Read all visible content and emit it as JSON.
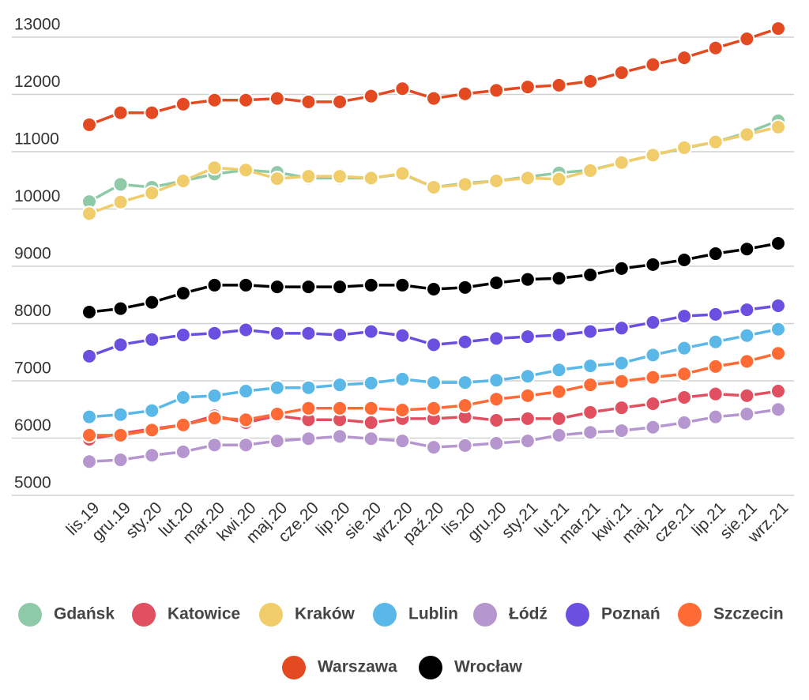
{
  "chart_data": {
    "type": "line",
    "categories": [
      "lis.19",
      "gru.19",
      "sty.20",
      "lut.20",
      "mar.20",
      "kwi.20",
      "maj.20",
      "cze.20",
      "lip.20",
      "sie.20",
      "wrz.20",
      "paź.20",
      "lis.20",
      "gru.20",
      "sty.21",
      "lut.21",
      "mar.21",
      "kwi.21",
      "maj.21",
      "cze.21",
      "lip.21",
      "sie.21",
      "wrz.21"
    ],
    "ylim": [
      5000,
      13200
    ],
    "yticks": [
      5000,
      6000,
      7000,
      8000,
      9000,
      10000,
      11000,
      12000,
      13000
    ],
    "grid": true,
    "legend": "bottom",
    "series": [
      {
        "name": "Gdańsk",
        "color": "#8ecaa8",
        "values": [
          10130,
          10430,
          10380,
          10490,
          10610,
          10680,
          10640,
          10540,
          10540,
          10540,
          10610,
          10380,
          10450,
          10490,
          10560,
          10630,
          10680,
          10810,
          10940,
          11060,
          11170,
          11330,
          11540
        ]
      },
      {
        "name": "Katowice",
        "color": "#e05060",
        "values": [
          5980,
          6080,
          6160,
          6230,
          6390,
          6270,
          6390,
          6320,
          6320,
          6270,
          6340,
          6340,
          6370,
          6310,
          6340,
          6340,
          6450,
          6530,
          6600,
          6710,
          6770,
          6740,
          6820
        ]
      },
      {
        "name": "Kraków",
        "color": "#f0cc6a",
        "values": [
          9920,
          10120,
          10280,
          10490,
          10720,
          10680,
          10530,
          10570,
          10570,
          10540,
          10620,
          10380,
          10430,
          10490,
          10540,
          10520,
          10670,
          10810,
          10940,
          11070,
          11170,
          11300,
          11430
        ]
      },
      {
        "name": "Lublin",
        "color": "#5ab8e8",
        "values": [
          6370,
          6410,
          6480,
          6710,
          6740,
          6820,
          6880,
          6880,
          6930,
          6960,
          7030,
          6970,
          6970,
          7010,
          7080,
          7190,
          7260,
          7310,
          7450,
          7570,
          7680,
          7790,
          7900
        ]
      },
      {
        "name": "Łódź",
        "color": "#b596cf",
        "values": [
          5590,
          5620,
          5700,
          5760,
          5880,
          5880,
          5950,
          5990,
          6030,
          5990,
          5950,
          5840,
          5870,
          5910,
          5950,
          6050,
          6100,
          6130,
          6190,
          6270,
          6370,
          6420,
          6500
        ]
      },
      {
        "name": "Poznań",
        "color": "#6a4fe0",
        "values": [
          7430,
          7630,
          7720,
          7800,
          7830,
          7890,
          7830,
          7830,
          7800,
          7860,
          7790,
          7630,
          7680,
          7740,
          7770,
          7800,
          7860,
          7920,
          8020,
          8130,
          8160,
          8240,
          8310
        ]
      },
      {
        "name": "Szczecin",
        "color": "#ff6a35",
        "values": [
          6050,
          6050,
          6140,
          6230,
          6350,
          6320,
          6420,
          6520,
          6520,
          6520,
          6490,
          6520,
          6570,
          6680,
          6740,
          6810,
          6930,
          6990,
          7060,
          7120,
          7250,
          7340,
          7480
        ]
      },
      {
        "name": "Warszawa",
        "color": "#e34a22",
        "values": [
          11470,
          11680,
          11680,
          11830,
          11900,
          11900,
          11930,
          11870,
          11870,
          11970,
          12100,
          11930,
          12010,
          12070,
          12130,
          12160,
          12230,
          12380,
          12520,
          12640,
          12810,
          12970,
          13150
        ]
      },
      {
        "name": "Wrocław",
        "color": "#000000",
        "values": [
          8200,
          8260,
          8370,
          8530,
          8670,
          8670,
          8640,
          8640,
          8640,
          8670,
          8670,
          8600,
          8630,
          8710,
          8770,
          8790,
          8850,
          8960,
          9030,
          9110,
          9220,
          9300,
          9400
        ]
      }
    ]
  }
}
